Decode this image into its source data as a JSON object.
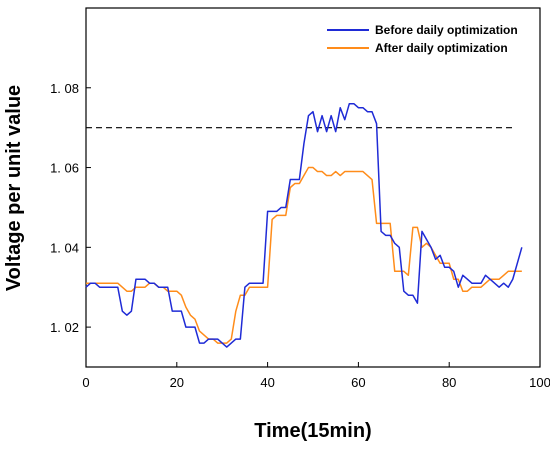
{
  "chart_data": {
    "type": "line",
    "xlabel": "Time(15min)",
    "ylabel": "Voltage per unit value",
    "xlim": [
      0,
      100
    ],
    "ylim": [
      1.01,
      1.1
    ],
    "x_ticks": [
      0,
      20,
      40,
      60,
      80,
      100
    ],
    "y_ticks": [
      1.02,
      1.04,
      1.06,
      1.08
    ],
    "y_tick_labels": [
      "1. 02",
      "1. 04",
      "1. 06",
      "1. 08"
    ],
    "grid": false,
    "legend_position": "top-right",
    "reference_line": {
      "y": 1.07,
      "style": "dashed",
      "color": "#000000"
    },
    "series": [
      {
        "name": "Before daily optimization",
        "color": "#1f2bd6",
        "x": [
          0,
          1,
          2,
          3,
          4,
          5,
          6,
          7,
          8,
          9,
          10,
          11,
          12,
          13,
          14,
          15,
          16,
          17,
          18,
          19,
          20,
          21,
          22,
          23,
          24,
          25,
          26,
          27,
          28,
          29,
          30,
          31,
          32,
          33,
          34,
          35,
          36,
          37,
          38,
          39,
          40,
          41,
          42,
          43,
          44,
          45,
          46,
          47,
          48,
          49,
          50,
          51,
          52,
          53,
          54,
          55,
          56,
          57,
          58,
          59,
          60,
          61,
          62,
          63,
          64,
          65,
          66,
          67,
          68,
          69,
          70,
          71,
          72,
          73,
          74,
          75,
          76,
          77,
          78,
          79,
          80,
          81,
          82,
          83,
          84,
          85,
          86,
          87,
          88,
          89,
          90,
          91,
          92,
          93,
          94,
          95,
          96
        ],
        "y": [
          1.03,
          1.031,
          1.031,
          1.03,
          1.03,
          1.03,
          1.03,
          1.03,
          1.024,
          1.023,
          1.024,
          1.032,
          1.032,
          1.032,
          1.031,
          1.031,
          1.03,
          1.03,
          1.03,
          1.024,
          1.024,
          1.024,
          1.02,
          1.02,
          1.02,
          1.016,
          1.016,
          1.017,
          1.017,
          1.017,
          1.016,
          1.015,
          1.016,
          1.017,
          1.017,
          1.03,
          1.031,
          1.031,
          1.031,
          1.031,
          1.049,
          1.049,
          1.049,
          1.05,
          1.05,
          1.057,
          1.057,
          1.057,
          1.066,
          1.073,
          1.074,
          1.069,
          1.073,
          1.069,
          1.073,
          1.069,
          1.075,
          1.072,
          1.076,
          1.076,
          1.075,
          1.075,
          1.074,
          1.074,
          1.071,
          1.044,
          1.043,
          1.043,
          1.041,
          1.04,
          1.029,
          1.028,
          1.028,
          1.026,
          1.044,
          1.042,
          1.04,
          1.037,
          1.038,
          1.035,
          1.035,
          1.034,
          1.03,
          1.033,
          1.032,
          1.031,
          1.031,
          1.031,
          1.033,
          1.032,
          1.031,
          1.03,
          1.031,
          1.03,
          1.032,
          1.036,
          1.04
        ]
      },
      {
        "name": "After daily optimization",
        "color": "#ff8c1a",
        "x": [
          0,
          1,
          2,
          3,
          4,
          5,
          6,
          7,
          8,
          9,
          10,
          11,
          12,
          13,
          14,
          15,
          16,
          17,
          18,
          19,
          20,
          21,
          22,
          23,
          24,
          25,
          26,
          27,
          28,
          29,
          30,
          31,
          32,
          33,
          34,
          35,
          36,
          37,
          38,
          39,
          40,
          41,
          42,
          43,
          44,
          45,
          46,
          47,
          48,
          49,
          50,
          51,
          52,
          53,
          54,
          55,
          56,
          57,
          58,
          59,
          60,
          61,
          62,
          63,
          64,
          65,
          66,
          67,
          68,
          69,
          70,
          71,
          72,
          73,
          74,
          75,
          76,
          77,
          78,
          79,
          80,
          81,
          82,
          83,
          84,
          85,
          86,
          87,
          88,
          89,
          90,
          91,
          92,
          93,
          94,
          95,
          96
        ],
        "y": [
          1.031,
          1.031,
          1.031,
          1.031,
          1.031,
          1.031,
          1.031,
          1.031,
          1.03,
          1.029,
          1.029,
          1.03,
          1.03,
          1.03,
          1.031,
          1.031,
          1.03,
          1.03,
          1.029,
          1.029,
          1.029,
          1.028,
          1.025,
          1.023,
          1.022,
          1.019,
          1.018,
          1.017,
          1.017,
          1.016,
          1.016,
          1.016,
          1.017,
          1.024,
          1.028,
          1.028,
          1.03,
          1.03,
          1.03,
          1.03,
          1.03,
          1.047,
          1.048,
          1.048,
          1.048,
          1.055,
          1.056,
          1.056,
          1.058,
          1.06,
          1.06,
          1.059,
          1.059,
          1.058,
          1.058,
          1.059,
          1.058,
          1.059,
          1.059,
          1.059,
          1.059,
          1.059,
          1.058,
          1.057,
          1.046,
          1.046,
          1.046,
          1.046,
          1.034,
          1.034,
          1.034,
          1.033,
          1.045,
          1.045,
          1.04,
          1.041,
          1.04,
          1.038,
          1.036,
          1.036,
          1.036,
          1.032,
          1.032,
          1.029,
          1.029,
          1.03,
          1.03,
          1.03,
          1.031,
          1.032,
          1.032,
          1.032,
          1.033,
          1.034,
          1.034,
          1.034,
          1.034
        ]
      }
    ]
  }
}
